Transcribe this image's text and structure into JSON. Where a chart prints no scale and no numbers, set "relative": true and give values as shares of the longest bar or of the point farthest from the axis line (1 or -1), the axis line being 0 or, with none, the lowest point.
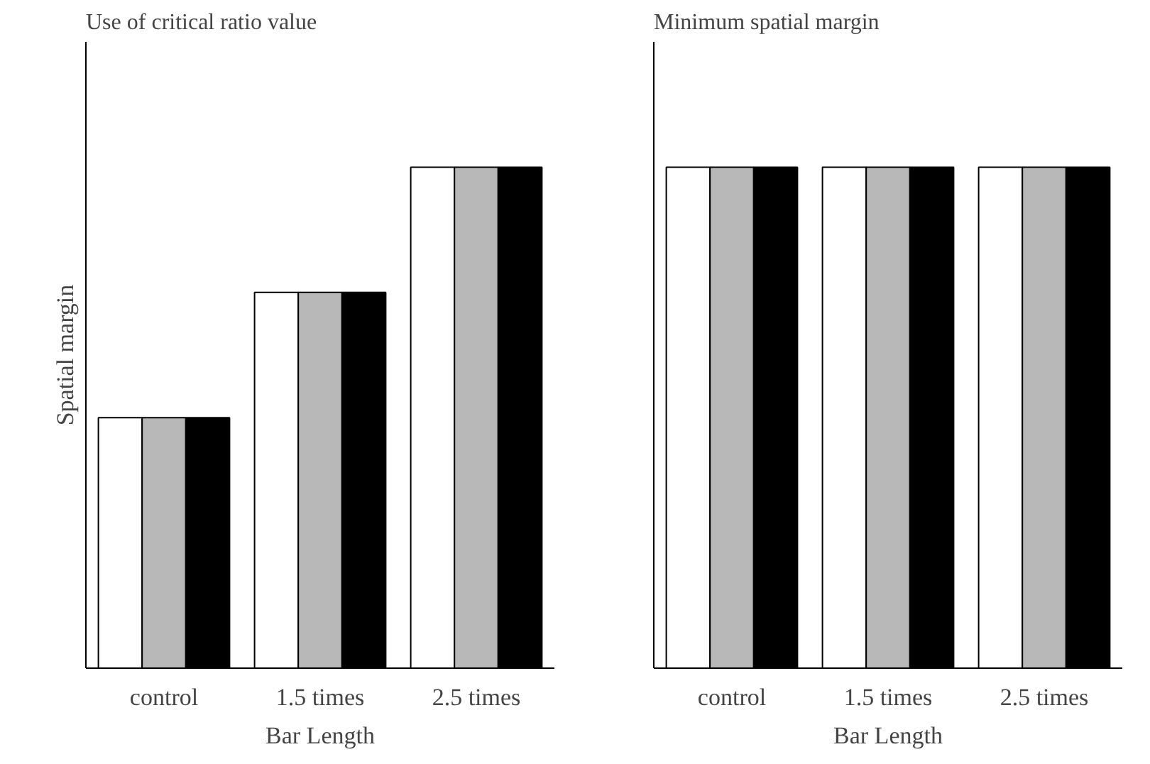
{
  "chart_data": [
    {
      "type": "bar",
      "title": "Use of critical ratio value",
      "xlabel": "Bar Length",
      "ylabel": "Spatial margin",
      "categories": [
        "control",
        "1.5 times",
        "2.5 times"
      ],
      "relative": true,
      "grid": false,
      "series": [
        {
          "color": "#ffffff",
          "values": [
            0.5,
            0.75,
            1
          ]
        },
        {
          "color": "#b8b8b8",
          "values": [
            0.5,
            0.75,
            1
          ]
        },
        {
          "color": "#000000",
          "values": [
            0.5,
            0.75,
            1
          ]
        }
      ]
    },
    {
      "type": "bar",
      "title": "Minimum spatial margin",
      "xlabel": "Bar Length",
      "categories": [
        "control",
        "1.5 times",
        "2.5 times"
      ],
      "relative": true,
      "grid": false,
      "series": [
        {
          "color": "#ffffff",
          "values": [
            1,
            1,
            1
          ]
        },
        {
          "color": "#b8b8b8",
          "values": [
            1,
            1,
            1
          ]
        },
        {
          "color": "#000000",
          "values": [
            1,
            1,
            1
          ]
        }
      ]
    }
  ]
}
